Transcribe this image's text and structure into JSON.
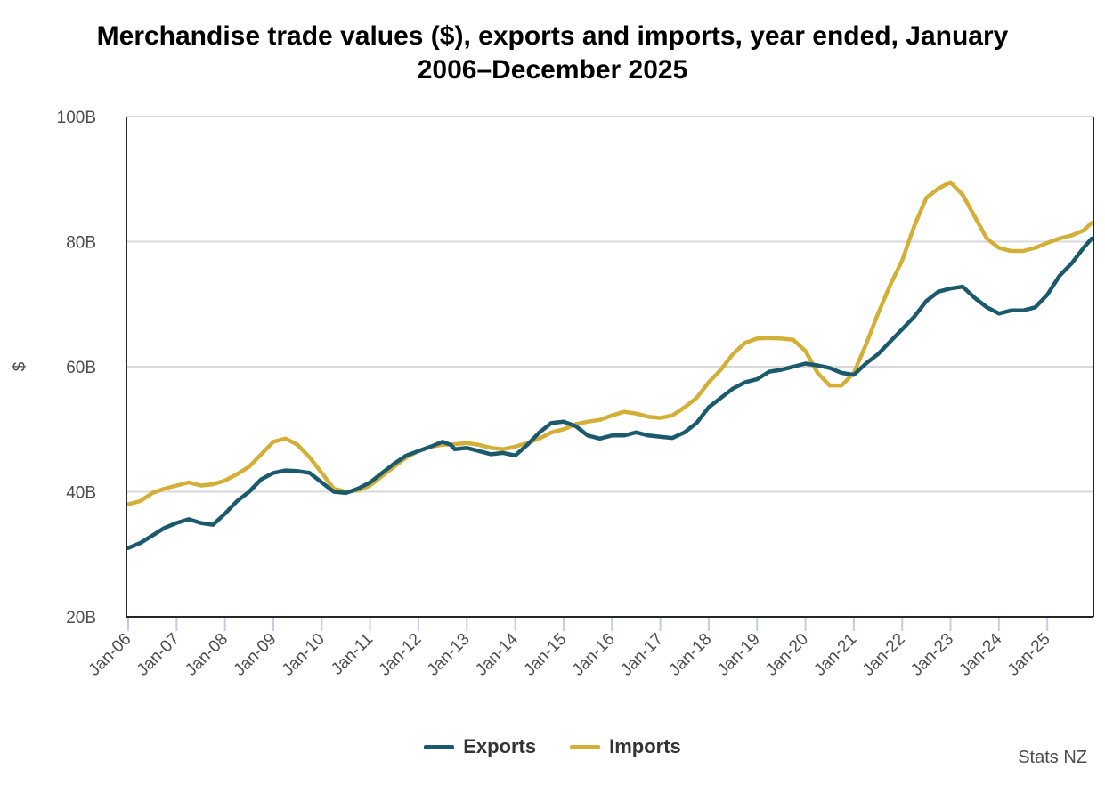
{
  "title_lines": [
    "Merchandise trade values ($), exports and imports, year ended, January",
    "2006–December 2025"
  ],
  "source": "Stats NZ",
  "colors": {
    "exports": "#1a5a6c",
    "imports": "#d4af37",
    "grid": "#d9d9d9",
    "axis": "#262626",
    "tick": "#c8cbe6"
  },
  "chart_data": {
    "type": "line",
    "title": "Merchandise trade values ($), exports and imports, year ended, January 2006–December 2025",
    "xlabel": "",
    "ylabel": "$",
    "ylim": [
      20,
      100
    ],
    "y_ticks": [
      20,
      40,
      60,
      80,
      100
    ],
    "y_tick_labels": [
      "20B",
      "40B",
      "60B",
      "80B",
      "100B"
    ],
    "x_ticks": [
      "Jan-06",
      "Jan-07",
      "Jan-08",
      "Jan-09",
      "Jan-10",
      "Jan-11",
      "Jan-12",
      "Jan-13",
      "Jan-14",
      "Jan-15",
      "Jan-16",
      "Jan-17",
      "Jan-18",
      "Jan-19",
      "Jan-20",
      "Jan-21",
      "Jan-22",
      "Jan-23",
      "Jan-24",
      "Jan-25"
    ],
    "x_range_months": [
      0,
      239
    ],
    "legend": [
      "Exports",
      "Imports"
    ],
    "series": [
      {
        "name": "Exports",
        "unit": "billion NZD",
        "points": [
          [
            0,
            31
          ],
          [
            3,
            31.8
          ],
          [
            6,
            33
          ],
          [
            9,
            34.2
          ],
          [
            12,
            35
          ],
          [
            15,
            35.6
          ],
          [
            18,
            35
          ],
          [
            21,
            34.7
          ],
          [
            24,
            36.5
          ],
          [
            27,
            38.5
          ],
          [
            30,
            40
          ],
          [
            33,
            42
          ],
          [
            36,
            43
          ],
          [
            39,
            43.4
          ],
          [
            42,
            43.3
          ],
          [
            45,
            43
          ],
          [
            48,
            41.5
          ],
          [
            51,
            40
          ],
          [
            54,
            39.8
          ],
          [
            57,
            40.5
          ],
          [
            60,
            41.5
          ],
          [
            63,
            43
          ],
          [
            66,
            44.5
          ],
          [
            69,
            45.8
          ],
          [
            72,
            46.5
          ],
          [
            75,
            47.2
          ],
          [
            78,
            48
          ],
          [
            80,
            47.5
          ],
          [
            81,
            46.8
          ],
          [
            84,
            47
          ],
          [
            87,
            46.5
          ],
          [
            90,
            46
          ],
          [
            93,
            46.2
          ],
          [
            96,
            45.8
          ],
          [
            99,
            47.5
          ],
          [
            102,
            49.5
          ],
          [
            105,
            51
          ],
          [
            108,
            51.2
          ],
          [
            111,
            50.5
          ],
          [
            114,
            49
          ],
          [
            117,
            48.5
          ],
          [
            120,
            49
          ],
          [
            123,
            49
          ],
          [
            126,
            49.5
          ],
          [
            129,
            49
          ],
          [
            132,
            48.8
          ],
          [
            135,
            48.6
          ],
          [
            138,
            49.5
          ],
          [
            141,
            51
          ],
          [
            144,
            53.5
          ],
          [
            147,
            55
          ],
          [
            150,
            56.5
          ],
          [
            153,
            57.5
          ],
          [
            156,
            58
          ],
          [
            159,
            59.2
          ],
          [
            162,
            59.5
          ],
          [
            165,
            60
          ],
          [
            168,
            60.5
          ],
          [
            171,
            60.2
          ],
          [
            174,
            59.8
          ],
          [
            177,
            59
          ],
          [
            180,
            58.7
          ],
          [
            183,
            60.5
          ],
          [
            186,
            62
          ],
          [
            189,
            64
          ],
          [
            192,
            66
          ],
          [
            195,
            68
          ],
          [
            198,
            70.5
          ],
          [
            201,
            72
          ],
          [
            204,
            72.5
          ],
          [
            207,
            72.8
          ],
          [
            210,
            71
          ],
          [
            213,
            69.5
          ],
          [
            216,
            68.5
          ],
          [
            219,
            69
          ],
          [
            222,
            69
          ],
          [
            225,
            69.5
          ],
          [
            228,
            71.5
          ],
          [
            231,
            74.5
          ],
          [
            234,
            76.5
          ],
          [
            237,
            79
          ],
          [
            239,
            80.5
          ]
        ]
      },
      {
        "name": "Imports",
        "unit": "billion NZD",
        "points": [
          [
            0,
            38
          ],
          [
            3,
            38.5
          ],
          [
            6,
            39.8
          ],
          [
            9,
            40.5
          ],
          [
            12,
            41
          ],
          [
            15,
            41.5
          ],
          [
            18,
            41
          ],
          [
            21,
            41.2
          ],
          [
            24,
            41.8
          ],
          [
            27,
            42.8
          ],
          [
            30,
            44
          ],
          [
            33,
            46
          ],
          [
            36,
            48
          ],
          [
            39,
            48.5
          ],
          [
            42,
            47.5
          ],
          [
            45,
            45.5
          ],
          [
            48,
            43
          ],
          [
            51,
            40.5
          ],
          [
            54,
            40
          ],
          [
            57,
            40.2
          ],
          [
            60,
            41
          ],
          [
            63,
            42.5
          ],
          [
            66,
            44
          ],
          [
            69,
            45.5
          ],
          [
            72,
            46.5
          ],
          [
            75,
            47.2
          ],
          [
            78,
            47.5
          ],
          [
            81,
            47.6
          ],
          [
            84,
            47.8
          ],
          [
            87,
            47.5
          ],
          [
            90,
            47
          ],
          [
            93,
            46.8
          ],
          [
            96,
            47.2
          ],
          [
            99,
            47.8
          ],
          [
            102,
            48.5
          ],
          [
            105,
            49.5
          ],
          [
            108,
            50
          ],
          [
            111,
            50.8
          ],
          [
            114,
            51.2
          ],
          [
            117,
            51.5
          ],
          [
            120,
            52.2
          ],
          [
            123,
            52.8
          ],
          [
            126,
            52.5
          ],
          [
            129,
            52
          ],
          [
            132,
            51.8
          ],
          [
            135,
            52.2
          ],
          [
            138,
            53.5
          ],
          [
            141,
            55
          ],
          [
            144,
            57.5
          ],
          [
            147,
            59.5
          ],
          [
            150,
            62
          ],
          [
            153,
            63.8
          ],
          [
            156,
            64.5
          ],
          [
            159,
            64.6
          ],
          [
            162,
            64.5
          ],
          [
            165,
            64.3
          ],
          [
            168,
            62.5
          ],
          [
            171,
            59
          ],
          [
            174,
            57
          ],
          [
            177,
            57
          ],
          [
            180,
            59
          ],
          [
            183,
            63.5
          ],
          [
            186,
            68.5
          ],
          [
            189,
            73
          ],
          [
            192,
            77
          ],
          [
            195,
            82.5
          ],
          [
            198,
            87
          ],
          [
            201,
            88.5
          ],
          [
            204,
            89.5
          ],
          [
            207,
            87.5
          ],
          [
            210,
            84
          ],
          [
            213,
            80.5
          ],
          [
            216,
            79
          ],
          [
            219,
            78.5
          ],
          [
            222,
            78.5
          ],
          [
            225,
            79
          ],
          [
            228,
            79.8
          ],
          [
            231,
            80.5
          ],
          [
            234,
            81
          ],
          [
            237,
            81.8
          ],
          [
            239,
            83
          ]
        ]
      }
    ]
  }
}
